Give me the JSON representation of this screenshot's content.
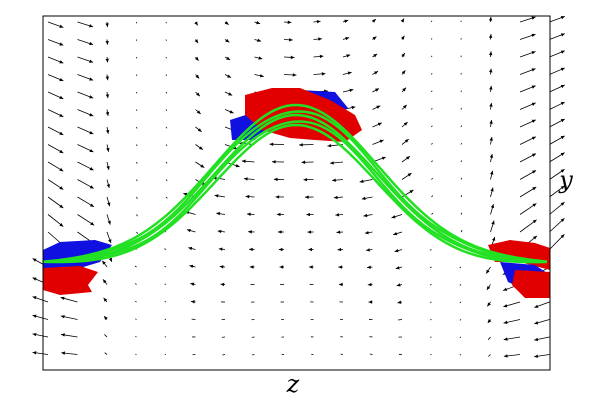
{
  "axes": {
    "xlabel": "z",
    "ylabel": "y"
  }
}
